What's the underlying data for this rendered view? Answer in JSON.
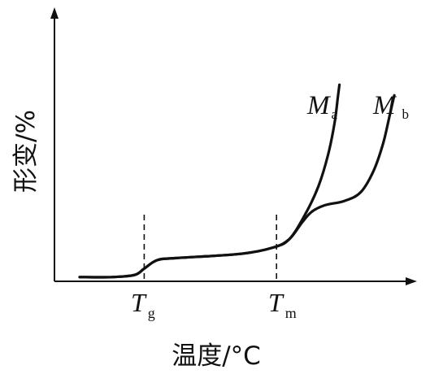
{
  "chart_data": {
    "type": "line",
    "title": "",
    "xlabel": "温度/°C",
    "ylabel": "形变/%",
    "x_ticks": [
      {
        "main": "T",
        "sub": "g"
      },
      {
        "main": "T",
        "sub": "m"
      }
    ],
    "series": [
      {
        "name_main": "M",
        "name_sub": "a",
        "points": [
          [
            0.0,
            0.02
          ],
          [
            0.1,
            0.02
          ],
          [
            0.17,
            0.03
          ],
          [
            0.2,
            0.06
          ],
          [
            0.24,
            0.1
          ],
          [
            0.3,
            0.11
          ],
          [
            0.5,
            0.13
          ],
          [
            0.6,
            0.16
          ],
          [
            0.65,
            0.2
          ],
          [
            0.7,
            0.32
          ],
          [
            0.74,
            0.45
          ],
          [
            0.77,
            0.6
          ],
          [
            0.79,
            0.75
          ],
          [
            0.8,
            0.87
          ],
          [
            0.805,
            0.93
          ]
        ]
      },
      {
        "name_main": "M",
        "name_sub": "b",
        "points": [
          [
            0.0,
            0.02
          ],
          [
            0.1,
            0.02
          ],
          [
            0.17,
            0.03
          ],
          [
            0.2,
            0.06
          ],
          [
            0.24,
            0.1
          ],
          [
            0.3,
            0.11
          ],
          [
            0.5,
            0.13
          ],
          [
            0.6,
            0.16
          ],
          [
            0.65,
            0.2
          ],
          [
            0.69,
            0.28
          ],
          [
            0.72,
            0.33
          ],
          [
            0.76,
            0.36
          ],
          [
            0.82,
            0.38
          ],
          [
            0.87,
            0.42
          ],
          [
            0.91,
            0.52
          ],
          [
            0.94,
            0.65
          ],
          [
            0.96,
            0.78
          ],
          [
            0.975,
            0.88
          ]
        ]
      }
    ],
    "guides_x": [
      0.2,
      0.61
    ],
    "xlim": [
      0,
      1
    ],
    "ylim": [
      0,
      1
    ],
    "grid": false,
    "legend": "inline"
  }
}
